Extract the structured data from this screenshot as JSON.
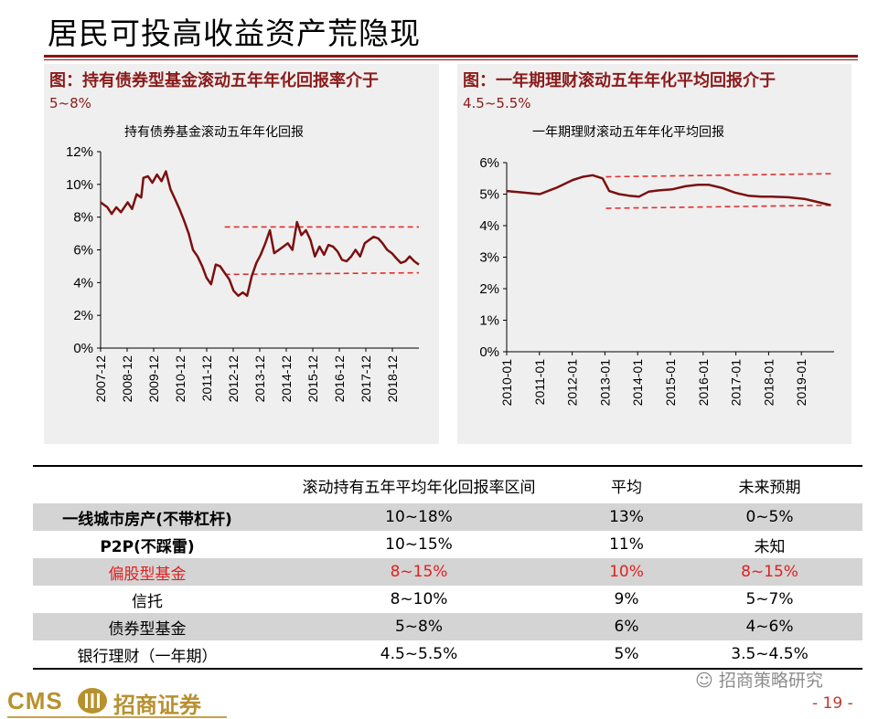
{
  "page": {
    "title": "居民可投高收益资产荒隐现",
    "page_number": "- 19 -",
    "watermark": "招商策略研究",
    "logo": {
      "cms": "CMS",
      "name": "招商证券"
    }
  },
  "colors": {
    "series": "#7b1010",
    "band": "#e03030",
    "accent": "#8b1414",
    "logo": "#b8912f"
  },
  "panels": [
    {
      "caption_line1": "图：持有债券型基金滚动五年年化回报率介于",
      "caption_line2": "5~8%",
      "chart_title": "持有债券基金滚动五年年化回报"
    },
    {
      "caption_line1": "图：一年期理财滚动五年年化平均回报介于",
      "caption_line2": "4.5~5.5%",
      "chart_title": "一年期理财滚动五年年化平均回报"
    }
  ],
  "chart_data": [
    {
      "type": "line",
      "title": "持有债券基金滚动五年年化回报",
      "x_tick_labels": [
        "2007-12",
        "2008-12",
        "2009-12",
        "2010-12",
        "2011-12",
        "2012-12",
        "2013-12",
        "2014-12",
        "2015-12",
        "2016-12",
        "2017-12",
        "2018-12"
      ],
      "y_tick_labels": [
        "0%",
        "2%",
        "4%",
        "6%",
        "8%",
        "10%",
        "12%"
      ],
      "ylim": [
        0,
        12
      ],
      "xlim": [
        2007.92,
        2019.67
      ],
      "grid": false,
      "series": [
        {
          "x": [
            2007.92,
            2008.17,
            2008.33,
            2008.5,
            2008.67,
            2008.92,
            2009.08,
            2009.25,
            2009.42,
            2009.5,
            2009.67,
            2009.83,
            2010.0,
            2010.17,
            2010.33,
            2010.5,
            2010.67,
            2010.83,
            2011.0,
            2011.17,
            2011.33,
            2011.5,
            2011.67,
            2011.83,
            2012.0,
            2012.17,
            2012.33,
            2012.5,
            2012.67,
            2012.83,
            2013.0,
            2013.17,
            2013.33,
            2013.5,
            2013.67,
            2013.83,
            2014.0,
            2014.17,
            2014.33,
            2014.5,
            2014.67,
            2014.83,
            2015.0,
            2015.17,
            2015.33,
            2015.5,
            2015.67,
            2015.83,
            2016.0,
            2016.17,
            2016.33,
            2016.5,
            2016.67,
            2016.83,
            2017.0,
            2017.17,
            2017.33,
            2017.5,
            2017.67,
            2017.83,
            2018.0,
            2018.17,
            2018.33,
            2018.5,
            2018.67,
            2018.83,
            2019.0,
            2019.17,
            2019.33,
            2019.5,
            2019.67
          ],
          "y": [
            8.9,
            8.6,
            8.2,
            8.6,
            8.3,
            8.9,
            8.5,
            9.4,
            9.2,
            10.4,
            10.5,
            10.1,
            10.6,
            10.2,
            10.8,
            9.7,
            9.1,
            8.5,
            7.8,
            7.0,
            6.0,
            5.6,
            5.0,
            4.3,
            3.9,
            5.1,
            5.0,
            4.6,
            4.2,
            3.5,
            3.2,
            3.4,
            3.2,
            4.4,
            5.2,
            5.7,
            6.4,
            7.2,
            5.8,
            6.0,
            6.2,
            6.4,
            6.0,
            7.7,
            6.9,
            7.2,
            6.6,
            5.6,
            6.2,
            5.7,
            6.3,
            6.2,
            5.9,
            5.4,
            5.3,
            5.6,
            6.0,
            5.6,
            6.4,
            6.6,
            6.8,
            6.7,
            6.4,
            6.0,
            5.8,
            5.5,
            5.2,
            5.3,
            5.6,
            5.3,
            5.1
          ]
        }
      ],
      "bands": [
        {
          "x": [
            2012.5,
            2019.67
          ],
          "y": [
            7.4,
            7.4
          ]
        },
        {
          "x": [
            2012.5,
            2019.67
          ],
          "y": [
            4.5,
            4.6
          ]
        }
      ]
    },
    {
      "type": "line",
      "title": "一年期理财滚动五年年化平均回报",
      "x_tick_labels": [
        "2010-01",
        "2011-01",
        "2012-01",
        "2013-01",
        "2014-01",
        "2015-01",
        "2016-01",
        "2017-01",
        "2018-01",
        "2019-01"
      ],
      "y_tick_labels": [
        "0%",
        "1%",
        "2%",
        "3%",
        "4%",
        "5%",
        "6%"
      ],
      "ylim": [
        0,
        6
      ],
      "xlim": [
        2010.0,
        2019.9
      ],
      "grid": false,
      "series": [
        {
          "x": [
            2010.0,
            2010.5,
            2011.0,
            2011.5,
            2012.0,
            2012.3,
            2012.6,
            2012.9,
            2013.1,
            2013.4,
            2013.7,
            2014.0,
            2014.3,
            2014.6,
            2015.0,
            2015.4,
            2015.8,
            2016.1,
            2016.5,
            2016.9,
            2017.3,
            2017.7,
            2018.0,
            2018.5,
            2019.0,
            2019.4,
            2019.8
          ],
          "y": [
            5.1,
            5.05,
            5.0,
            5.2,
            5.45,
            5.55,
            5.6,
            5.5,
            5.1,
            5.0,
            4.95,
            4.92,
            5.08,
            5.12,
            5.15,
            5.25,
            5.3,
            5.3,
            5.2,
            5.05,
            4.95,
            4.92,
            4.92,
            4.9,
            4.85,
            4.75,
            4.65
          ]
        }
      ],
      "bands": [
        {
          "x": [
            2013.0,
            2019.9
          ],
          "y": [
            5.55,
            5.65
          ]
        },
        {
          "x": [
            2013.0,
            2019.9
          ],
          "y": [
            4.55,
            4.65
          ]
        }
      ]
    }
  ],
  "table": {
    "headers": [
      "",
      "滚动持有五年平均年化回报率区间",
      "平均",
      "未来预期"
    ],
    "rows": [
      {
        "cells": [
          "一线城市房产(不带杠杆)",
          "10~18%",
          "13%",
          "0~5%"
        ],
        "shade": true,
        "highlight": false
      },
      {
        "cells": [
          "P2P(不踩雷)",
          "10~15%",
          "11%",
          "未知"
        ],
        "shade": false,
        "highlight": false
      },
      {
        "cells": [
          "偏股型基金",
          "8~15%",
          "10%",
          "8~15%"
        ],
        "shade": true,
        "highlight": true
      },
      {
        "cells": [
          "信托",
          "8~10%",
          "9%",
          "5~7%"
        ],
        "shade": false,
        "highlight": false
      },
      {
        "cells": [
          "债券型基金",
          "5~8%",
          "6%",
          "4~6%"
        ],
        "shade": true,
        "highlight": false
      },
      {
        "cells": [
          "银行理财（一年期）",
          "4.5~5.5%",
          "5%",
          "3.5~4.5%"
        ],
        "shade": false,
        "highlight": false
      }
    ]
  }
}
